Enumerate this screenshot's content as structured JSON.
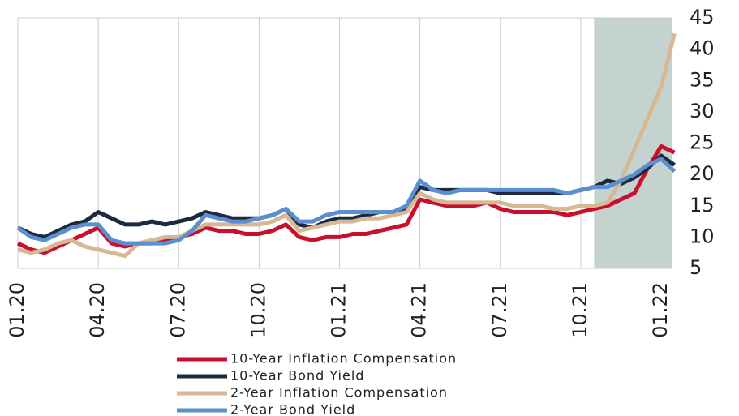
{
  "chart_data": {
    "type": "line",
    "categories": [
      "01.20",
      null,
      null,
      null,
      null,
      null,
      "04.20",
      null,
      null,
      null,
      null,
      null,
      "07.20",
      null,
      null,
      null,
      null,
      null,
      "10.20",
      null,
      null,
      null,
      null,
      null,
      "01.21",
      null,
      null,
      null,
      null,
      null,
      "04.21",
      null,
      null,
      null,
      null,
      null,
      "07.21",
      null,
      null,
      null,
      null,
      null,
      "10.21",
      null,
      null,
      null,
      null,
      null,
      "01.22",
      null
    ],
    "series": [
      {
        "name": "10-Year Inflation Compensation",
        "color": "#c8102e",
        "values": [
          9,
          8,
          7.5,
          8.5,
          9.5,
          10.5,
          11.5,
          9,
          8.5,
          9,
          9,
          9.5,
          10,
          10.5,
          11.5,
          11,
          11,
          10.5,
          10.5,
          11,
          12,
          10,
          9.5,
          10,
          10,
          10.5,
          10.5,
          11,
          11.5,
          12,
          16,
          15.5,
          15,
          15,
          15,
          15.5,
          14.5,
          14,
          14,
          14,
          14,
          13.5,
          14,
          14.5,
          15,
          16,
          17,
          21,
          24.5,
          23.5
        ]
      },
      {
        "name": "10-Year Bond Yield",
        "color": "#1b2a41",
        "values": [
          11.5,
          10.5,
          10,
          11,
          12,
          12.5,
          14,
          13,
          12,
          12,
          12.5,
          12,
          12.5,
          13,
          14,
          13.5,
          13,
          13,
          13,
          13.5,
          14.5,
          12,
          11.5,
          12.5,
          13,
          13,
          13.5,
          14,
          14,
          14.5,
          18,
          17.5,
          17.5,
          17.5,
          17.5,
          17.5,
          17,
          17,
          17,
          17,
          17,
          17,
          17.5,
          18,
          19,
          18.5,
          19.5,
          21,
          23,
          21.5
        ]
      },
      {
        "name": "2-Year Inflation Compensation",
        "color": "#d6b894",
        "values": [
          8,
          7.5,
          8,
          9,
          9.5,
          8.5,
          8,
          7.5,
          7,
          9,
          9.5,
          10,
          10,
          11,
          12,
          12,
          12,
          12,
          12,
          12.5,
          13.5,
          11,
          11.5,
          12,
          12.5,
          12.5,
          13,
          13,
          13.5,
          14,
          17,
          16,
          15.5,
          15.5,
          15.5,
          15.5,
          15.5,
          15,
          15,
          15,
          14.5,
          14.5,
          15,
          15,
          15.5,
          19,
          24,
          29,
          34,
          42.5
        ]
      },
      {
        "name": "2-Year Bond Yield",
        "color": "#5b8fd0",
        "values": [
          11.5,
          10,
          9.5,
          10.5,
          11.5,
          12,
          12,
          9.5,
          9,
          9,
          9,
          9,
          9.5,
          11,
          13.5,
          13,
          12.5,
          12.5,
          13,
          13.5,
          14.5,
          12.5,
          12.5,
          13.5,
          14,
          14,
          14,
          14,
          14,
          15,
          19,
          17.5,
          17,
          17.5,
          17.5,
          17.5,
          17.5,
          17.5,
          17.5,
          17.5,
          17.5,
          17,
          17.5,
          18,
          18,
          19,
          20,
          21.5,
          22.5,
          20.5
        ]
      }
    ],
    "ylim": [
      5,
      45
    ],
    "yticks": [
      5,
      10,
      15,
      20,
      25,
      30,
      35,
      40,
      45
    ],
    "grid": "x",
    "shaded_region": [
      43,
      49
    ],
    "shade_color": "#c5d3cf",
    "legend": "bottom"
  }
}
